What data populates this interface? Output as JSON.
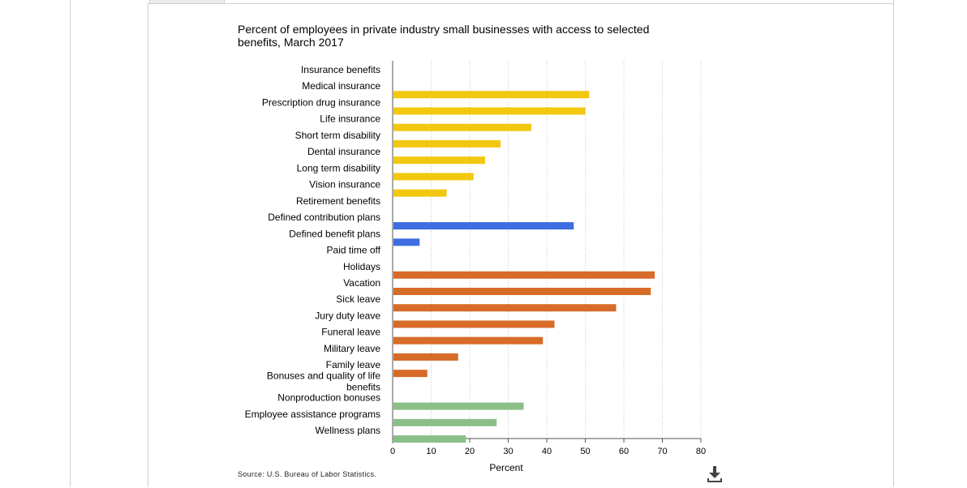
{
  "chart_data": {
    "type": "bar",
    "orientation": "horizontal",
    "title": "Percent of employees in private industry small businesses with access to selected benefits, March 2017",
    "xlabel": "Percent",
    "xlim": [
      0,
      80
    ],
    "xticks": [
      0,
      10,
      20,
      30,
      40,
      50,
      60,
      70,
      80
    ],
    "grid": true,
    "categories": [
      {
        "label": "Insurance benefits",
        "value": null,
        "group": "header"
      },
      {
        "label": "Medical insurance",
        "value": 51,
        "group": "insurance"
      },
      {
        "label": "Prescription drug insurance",
        "value": 50,
        "group": "insurance"
      },
      {
        "label": "Life insurance",
        "value": 36,
        "group": "insurance"
      },
      {
        "label": "Short term disability",
        "value": 28,
        "group": "insurance"
      },
      {
        "label": "Dental insurance",
        "value": 24,
        "group": "insurance"
      },
      {
        "label": "Long term disability",
        "value": 21,
        "group": "insurance"
      },
      {
        "label": "Vision insurance",
        "value": 14,
        "group": "insurance"
      },
      {
        "label": "Retirement benefits",
        "value": null,
        "group": "header"
      },
      {
        "label": "Defined contribution plans",
        "value": 47,
        "group": "retirement"
      },
      {
        "label": "Defined benefit plans",
        "value": 7,
        "group": "retirement"
      },
      {
        "label": "Paid time off",
        "value": null,
        "group": "header"
      },
      {
        "label": "Holidays",
        "value": 68,
        "group": "paid_time_off"
      },
      {
        "label": "Vacation",
        "value": 67,
        "group": "paid_time_off"
      },
      {
        "label": "Sick leave",
        "value": 58,
        "group": "paid_time_off"
      },
      {
        "label": "Jury duty leave",
        "value": 42,
        "group": "paid_time_off"
      },
      {
        "label": "Funeral leave",
        "value": 39,
        "group": "paid_time_off"
      },
      {
        "label": "Military leave",
        "value": 17,
        "group": "paid_time_off"
      },
      {
        "label": "Family leave",
        "value": 9,
        "group": "paid_time_off"
      },
      {
        "label": "Bonuses and quality of life benefits",
        "value": null,
        "group": "header"
      },
      {
        "label": "Nonproduction bonuses",
        "value": 34,
        "group": "bonuses"
      },
      {
        "label": "Employee assistance programs",
        "value": 27,
        "group": "bonuses"
      },
      {
        "label": "Wellness plans",
        "value": 19,
        "group": "bonuses"
      }
    ],
    "colors": {
      "insurance": "#f2c80f",
      "retirement": "#3e6ee0",
      "paid_time_off": "#d76b28",
      "bonuses": "#8cbf88"
    }
  },
  "source": "Source: U.S. Bureau of Labor Statistics.",
  "download_icon": "download-icon"
}
